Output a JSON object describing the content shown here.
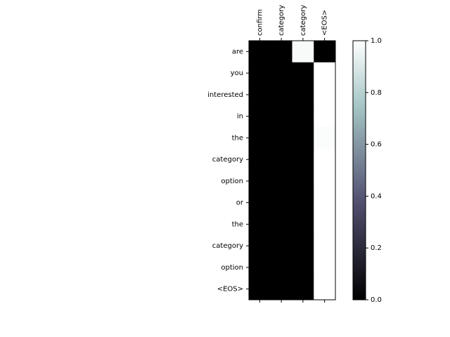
{
  "chart_data": {
    "type": "heatmap",
    "x_categories": [
      "confirm",
      "category",
      "category",
      "<EOS>"
    ],
    "y_categories": [
      "are",
      "you",
      "interested",
      "in",
      "the",
      "category",
      "option",
      "or",
      "the",
      "category",
      "option",
      "<EOS>"
    ],
    "values": [
      [
        0,
        0,
        0.98,
        0
      ],
      [
        0,
        0,
        0,
        1
      ],
      [
        0,
        0,
        0,
        1
      ],
      [
        0,
        0,
        0,
        1
      ],
      [
        0,
        0,
        0,
        0.99
      ],
      [
        0,
        0,
        0,
        1
      ],
      [
        0,
        0,
        0,
        1
      ],
      [
        0,
        0,
        0,
        1
      ],
      [
        0,
        0,
        0,
        1
      ],
      [
        0,
        0,
        0,
        1
      ],
      [
        0,
        0,
        0,
        1
      ],
      [
        0,
        0,
        0,
        1
      ]
    ],
    "colormap": "bone",
    "vmin": 0,
    "vmax": 1,
    "colorbar_ticks": [
      "0.0",
      "0.2",
      "0.4",
      "0.6",
      "0.8",
      "1.0"
    ],
    "colorbar_tick_values": [
      0,
      0.2,
      0.4,
      0.6,
      0.8,
      1.0
    ]
  }
}
